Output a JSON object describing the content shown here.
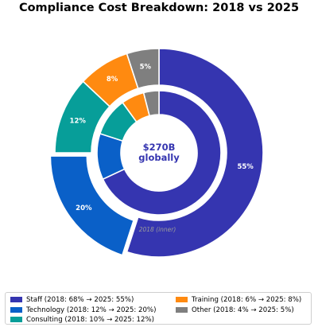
{
  "chart_data": {
    "type": "pie",
    "subtype": "nested-donut",
    "title": "Compliance Cost Breakdown: 2018 vs 2025",
    "center_text": [
      "$270B",
      "globally"
    ],
    "inner_ring_label": "2018 (inner)",
    "outer_ring_label": "",
    "categories": [
      "Staff",
      "Technology",
      "Consulting",
      "Training",
      "Other"
    ],
    "colors": [
      "#3535b0",
      "#0a60c8",
      "#079e99",
      "#ff8a10",
      "#7f7f7f"
    ],
    "series": [
      {
        "ring": "inner",
        "values": [
          68,
          12,
          10,
          6,
          4
        ]
      },
      {
        "ring": "outer",
        "values": [
          55,
          20,
          12,
          8,
          5
        ]
      }
    ],
    "outer_labels": [
      "55%",
      "20%",
      "12%",
      "8%",
      "5%"
    ],
    "exploded_outer": [
      false,
      true,
      false,
      false,
      false
    ],
    "legend": {
      "placement": "bottom",
      "entries": [
        "Staff (2018: 68% → 2025: 55%)",
        "Technology (2018: 12% → 2025: 20%)",
        "Consulting (2018: 10% → 2025: 12%)",
        "Training (2018: 6% → 2025: 8%)",
        "Other (2018: 4% → 2025: 5%)"
      ]
    }
  }
}
